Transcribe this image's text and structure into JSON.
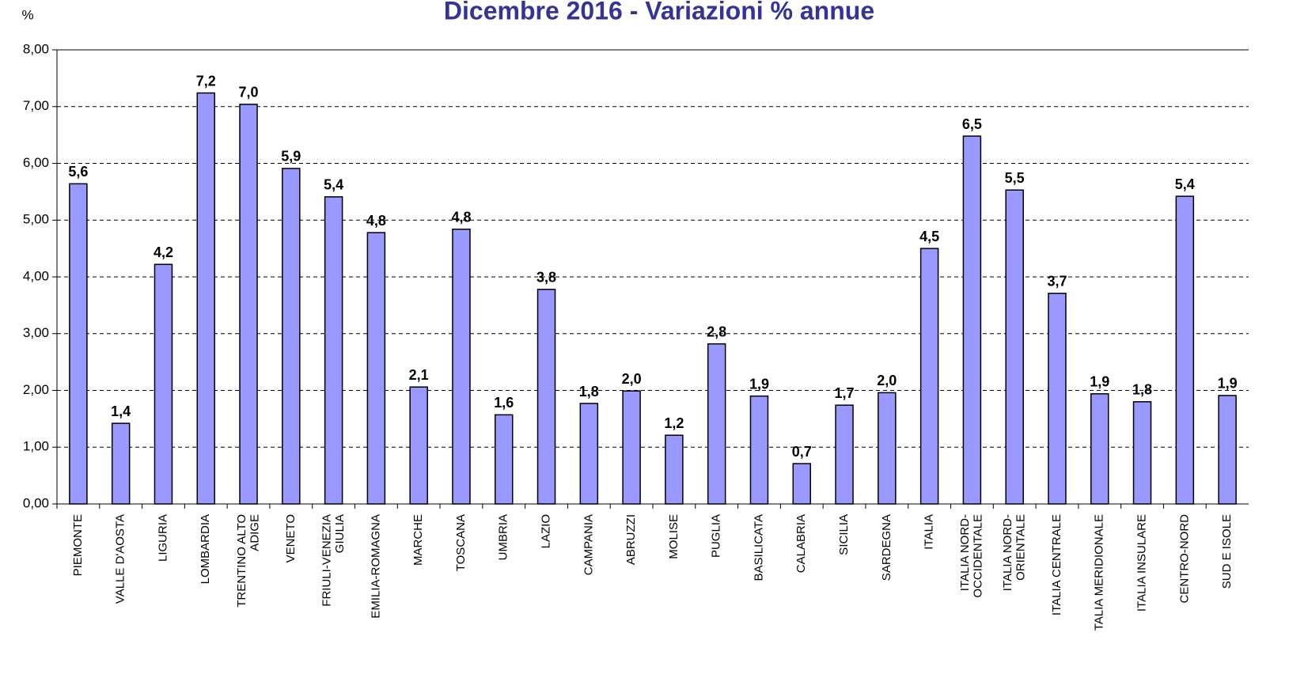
{
  "chart_data": {
    "type": "bar",
    "title": "Dicembre 2016 - Variazioni % annue",
    "y_label": "%",
    "categories": [
      "PIEMONTE",
      "VALLE D'AOSTA",
      "LIGURIA",
      "LOMBARDIA",
      "TRENTINO ALTO\nADIGE",
      "VENETO",
      "FRIULI-VENEZIA\nGIULIA",
      "EMILIA-ROMAGNA",
      "MARCHE",
      "TOSCANA",
      "UMBRIA",
      "LAZIO",
      "CAMPANIA",
      "ABRUZZI",
      "MOLISE",
      "PUGLIA",
      "BASILICATA",
      "CALABRIA",
      "SICILIA",
      "SARDEGNA",
      "ITALIA",
      "ITALIA NORD-\nOCCIDENTALE",
      "ITALIA NORD-\nORIENTALE",
      "ITALIA CENTRALE",
      "TALIA MERIDIONALE",
      "ITALIA INSULARE",
      "CENTRO-NORD",
      "SUD E ISOLE"
    ],
    "values": [
      5.64,
      1.42,
      4.22,
      7.24,
      7.04,
      5.91,
      5.41,
      4.78,
      2.06,
      4.84,
      1.57,
      3.78,
      1.77,
      1.99,
      1.21,
      2.82,
      1.9,
      0.71,
      1.74,
      1.96,
      4.5,
      6.48,
      5.53,
      3.71,
      1.94,
      1.8,
      5.42,
      1.91
    ],
    "value_labels": [
      "5,6",
      "1,4",
      "4,2",
      "7,2",
      "7,0",
      "5,9",
      "5,4",
      "4,8",
      "2,1",
      "4,8",
      "1,6",
      "3,8",
      "1,8",
      "2,0",
      "1,2",
      "2,8",
      "1,9",
      "0,7",
      "1,7",
      "2,0",
      "4,5",
      "6,5",
      "5,5",
      "3,7",
      "1,9",
      "1,8",
      "5,4",
      "1,9"
    ],
    "color": "#9999ff",
    "ylim": [
      0,
      8
    ],
    "yticks": [
      {
        "value": 0,
        "label": "0,00"
      },
      {
        "value": 1,
        "label": "1,00"
      },
      {
        "value": 2,
        "label": "2,00"
      },
      {
        "value": 3,
        "label": "3,00"
      },
      {
        "value": 4,
        "label": "4,00"
      },
      {
        "value": 5,
        "label": "5,00"
      },
      {
        "value": 6,
        "label": "6,00"
      },
      {
        "value": 7,
        "label": "7,00"
      },
      {
        "value": 8,
        "label": "8,00"
      }
    ],
    "grid": true
  }
}
